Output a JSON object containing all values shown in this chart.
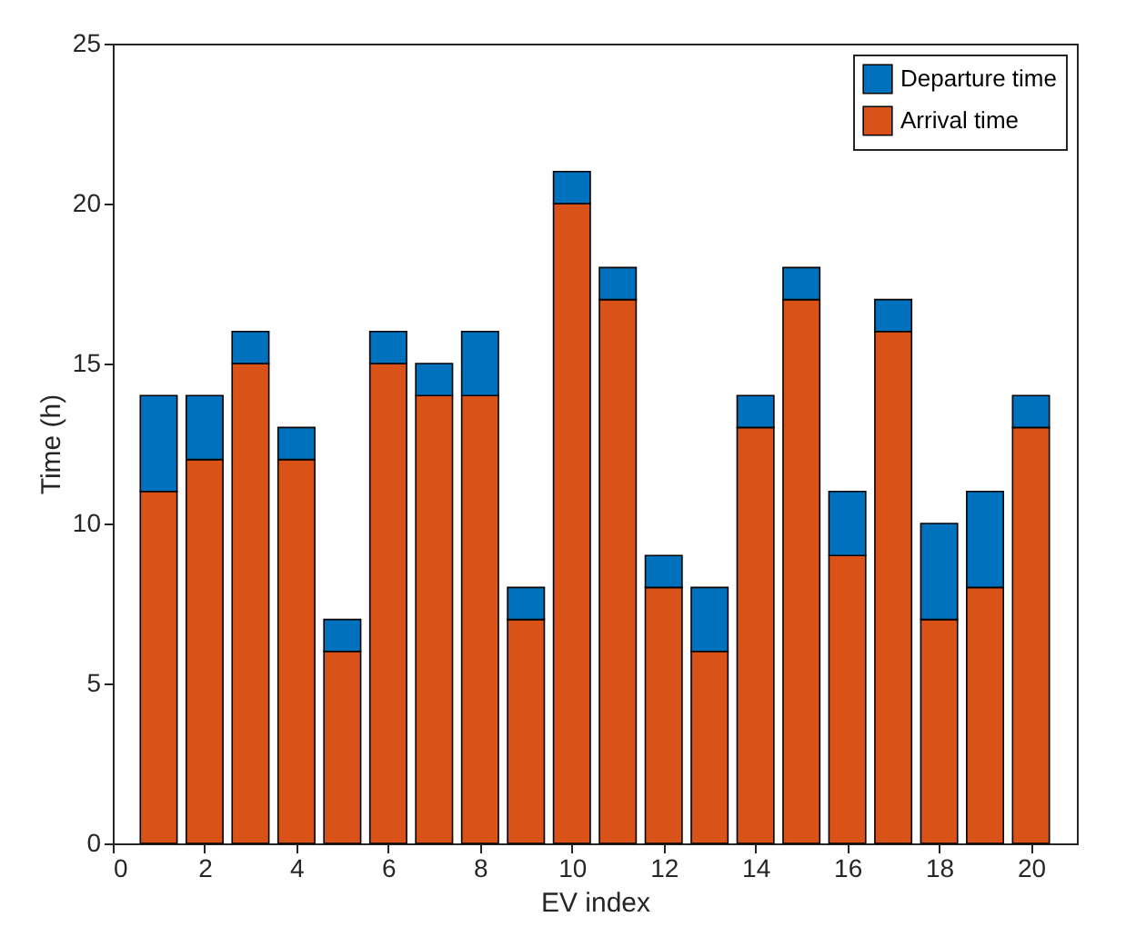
{
  "chart_data": {
    "type": "bar",
    "stacked": true,
    "xlabel": "EV index",
    "ylabel": "Time (h)",
    "x": [
      1,
      2,
      3,
      4,
      5,
      6,
      7,
      8,
      9,
      10,
      11,
      12,
      13,
      14,
      15,
      16,
      17,
      18,
      19,
      20
    ],
    "series": [
      {
        "name": "Arrival time",
        "color": "#d95319",
        "values": [
          11,
          12,
          15,
          12,
          6,
          15,
          14,
          14,
          7,
          20,
          17,
          8,
          6,
          13,
          17,
          9,
          16,
          7,
          8,
          13
        ]
      },
      {
        "name": "Departure time",
        "color": "#0072bd",
        "values": [
          3,
          2,
          1,
          1,
          1,
          1,
          1,
          2,
          1,
          1,
          1,
          1,
          2,
          1,
          1,
          2,
          1,
          3,
          3,
          1
        ]
      }
    ],
    "xlim": [
      0,
      21
    ],
    "xticks": [
      0,
      2,
      4,
      6,
      8,
      10,
      12,
      14,
      16,
      18,
      20
    ],
    "ylim": [
      0,
      25
    ],
    "yticks": [
      0,
      5,
      10,
      15,
      20,
      25
    ],
    "legend": "top right"
  }
}
